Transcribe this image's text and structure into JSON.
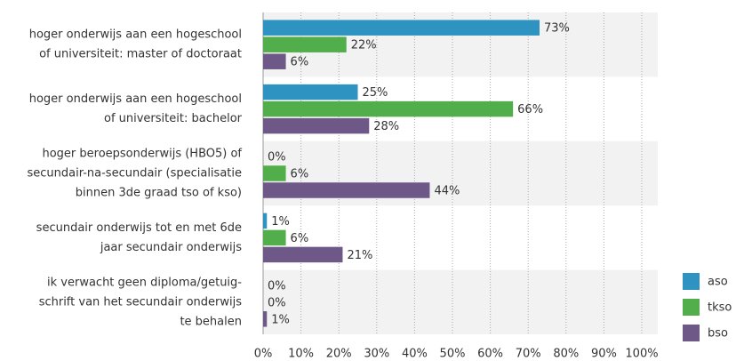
{
  "chart_data": {
    "type": "bar",
    "orientation": "horizontal",
    "categories": [
      [
        "hoger onderwijs aan een hogeschool",
        "of universiteit: master of doctoraat"
      ],
      [
        "hoger onderwijs aan een hogeschool",
        "of universiteit: bachelor"
      ],
      [
        "hoger beroepsonderwijs (HBO5) of",
        "secundair-na-secundair (specialisatie",
        "binnen 3de graad tso of kso)"
      ],
      [
        "secundair onderwijs tot en met 6de",
        "jaar secundair onderwijs"
      ],
      [
        "ik verwacht geen diploma/getuig-",
        "schrift van het secundair onderwijs",
        "te behalen"
      ]
    ],
    "series": [
      {
        "name": "aso",
        "color": "#2e93c1",
        "values": [
          73,
          25,
          0,
          1,
          0
        ],
        "value_labels": [
          "73%",
          "25%",
          "0%",
          "1%",
          "0%"
        ]
      },
      {
        "name": "tkso",
        "color": "#52ae4b",
        "values": [
          22,
          66,
          6,
          6,
          0
        ],
        "value_labels": [
          "22%",
          "66%",
          "6%",
          "6%",
          "0%"
        ]
      },
      {
        "name": "bso",
        "color": "#6d5887",
        "values": [
          6,
          28,
          44,
          21,
          1
        ],
        "value_labels": [
          "6%",
          "28%",
          "44%",
          "21%",
          "1%"
        ]
      }
    ],
    "xlim": [
      0,
      100
    ],
    "xticks": [
      {
        "value": 0,
        "label": "0%"
      },
      {
        "value": 10,
        "label": "10%"
      },
      {
        "value": 20,
        "label": "20%"
      },
      {
        "value": 30,
        "label": "30%"
      },
      {
        "value": 40,
        "label": "40%"
      },
      {
        "value": 50,
        "label": "50%"
      },
      {
        "value": 60,
        "label": "60%"
      },
      {
        "value": 70,
        "label": "70%"
      },
      {
        "value": 80,
        "label": "80%"
      },
      {
        "value": 90,
        "label": "90%"
      },
      {
        "value": 100,
        "label": "100%"
      }
    ],
    "grid": true,
    "legend": "bottom-right"
  }
}
